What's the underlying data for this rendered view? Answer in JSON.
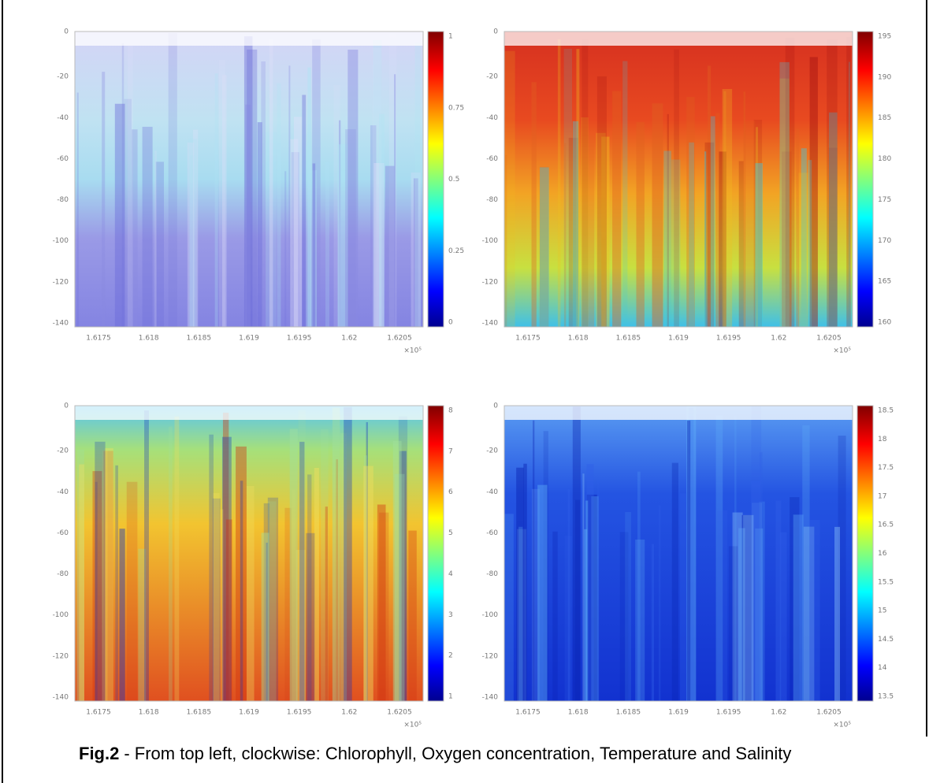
{
  "figure": {
    "panels": [
      {
        "yticks": [
          "0",
          "-20",
          "-40",
          "-60",
          "-80",
          "-100",
          "-120",
          "-140"
        ],
        "xticks": [
          "1.6175",
          "1.618",
          "1.6185",
          "1.619",
          "1.6195",
          "1.62",
          "1.6205"
        ],
        "x_multiplier": "×10⁵",
        "colorbar_ticks": [
          "1",
          "0.75",
          "0.5",
          "0.25",
          "0"
        ]
      },
      {
        "yticks": [
          "0",
          "-20",
          "-40",
          "-60",
          "-80",
          "-100",
          "-120",
          "-140"
        ],
        "xticks": [
          "1.6175",
          "1.618",
          "1.6185",
          "1.619",
          "1.6195",
          "1.62",
          "1.6205"
        ],
        "x_multiplier": "×10⁵",
        "colorbar_ticks": [
          "195",
          "190",
          "185",
          "180",
          "175",
          "170",
          "165",
          "160"
        ]
      },
      {
        "yticks": [
          "0",
          "-20",
          "-40",
          "-60",
          "-80",
          "-100",
          "-120",
          "-140"
        ],
        "xticks": [
          "1.6175",
          "1.618",
          "1.6185",
          "1.619",
          "1.6195",
          "1.62",
          "1.6205"
        ],
        "x_multiplier": "×10⁵",
        "colorbar_ticks": [
          "8",
          "7",
          "6",
          "5",
          "4",
          "3",
          "2",
          "1"
        ]
      },
      {
        "yticks": [
          "0",
          "-20",
          "-40",
          "-60",
          "-80",
          "-100",
          "-120",
          "-140"
        ],
        "xticks": [
          "1.6175",
          "1.618",
          "1.6185",
          "1.619",
          "1.6195",
          "1.62",
          "1.6205"
        ],
        "x_multiplier": "×10⁵",
        "colorbar_ticks": [
          "18.5",
          "18",
          "17.5",
          "17",
          "16.5",
          "16",
          "15.5",
          "15",
          "14.5",
          "14",
          "13.5"
        ]
      }
    ],
    "caption": {
      "label": "Fig.2",
      "text": "- From top left, clockwise: Chlorophyll, Oxygen concentration, Temperature and Salinity"
    }
  }
}
